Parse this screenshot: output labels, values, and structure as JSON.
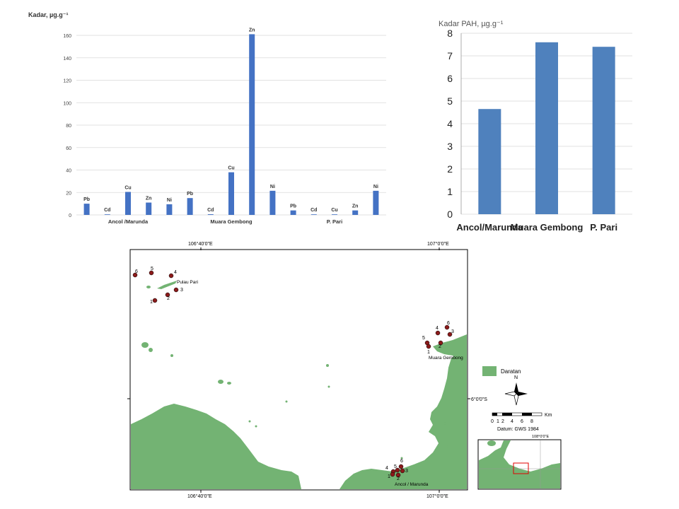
{
  "chart_data": [
    {
      "type": "bar",
      "ylabel": "Kadar, µg.g⁻¹",
      "ylim": [
        0,
        160
      ],
      "yticks": [
        0,
        20,
        40,
        60,
        80,
        100,
        120,
        140,
        160
      ],
      "groups": [
        {
          "name": "Ancol /Marunda",
          "bars": [
            {
              "label": "Pb",
              "value": 10
            },
            {
              "label": "Cd",
              "value": 0.5
            },
            {
              "label": "Cu",
              "value": 20.5
            },
            {
              "label": "Zn",
              "value": 11
            },
            {
              "label": "Ni",
              "value": 9.5
            }
          ]
        },
        {
          "name": "Muara Gembong",
          "bars": [
            {
              "label": "Pb",
              "value": 15
            },
            {
              "label": "Cd",
              "value": 0.6
            },
            {
              "label": "Cu",
              "value": 38
            },
            {
              "label": "Zn",
              "value": 161
            },
            {
              "label": "Ni",
              "value": 21.5
            }
          ]
        },
        {
          "name": "P. Pari",
          "bars": [
            {
              "label": "Pb",
              "value": 4
            },
            {
              "label": "Cd",
              "value": 0.5
            },
            {
              "label": "Cu",
              "value": 0.5
            },
            {
              "label": "Zn",
              "value": 4
            },
            {
              "label": "Ni",
              "value": 21.5
            }
          ]
        }
      ],
      "color": "#4472c4",
      "grid": true
    },
    {
      "type": "bar",
      "ylabel": "Kadar PAH, µg.g⁻¹",
      "categories": [
        "Ancol/Marunda",
        "Muara Gembong",
        "P. Pari"
      ],
      "values": [
        4.65,
        7.6,
        7.4
      ],
      "ylim": [
        0,
        8
      ],
      "yticks": [
        0,
        1,
        2,
        3,
        4,
        5,
        6,
        7,
        8
      ],
      "color": "#4f81bd",
      "grid": true
    }
  ],
  "map": {
    "top_labels": [
      "106°40'0\"E",
      "107°0'0\"E"
    ],
    "bottom_labels": [
      "106°40'0\"E",
      "107°0'0\"E"
    ],
    "right_label": "6°0'0\"S",
    "place_labels": [
      "Pulau Pari",
      "Muara Gembong",
      "Ancol / Marunda"
    ],
    "stations": {
      "pulau_pari": [
        "6",
        "5",
        "4",
        "3",
        "2",
        "1"
      ],
      "muara_gembong": [
        "6",
        "4",
        "3",
        "5",
        "2",
        "1"
      ],
      "ancol": [
        "6",
        "4",
        "5",
        "3",
        "1",
        "2"
      ]
    },
    "legend_label": "Daratan",
    "compass": "N",
    "scale_ticks": [
      "0",
      "1",
      "2",
      "4",
      "6",
      "8"
    ],
    "scale_unit": "Km",
    "datum": "Datum: GWS 1984",
    "inset_label": "108°0'0\"E",
    "land_color": "#73b373",
    "station_color": "#8b1a1a"
  }
}
